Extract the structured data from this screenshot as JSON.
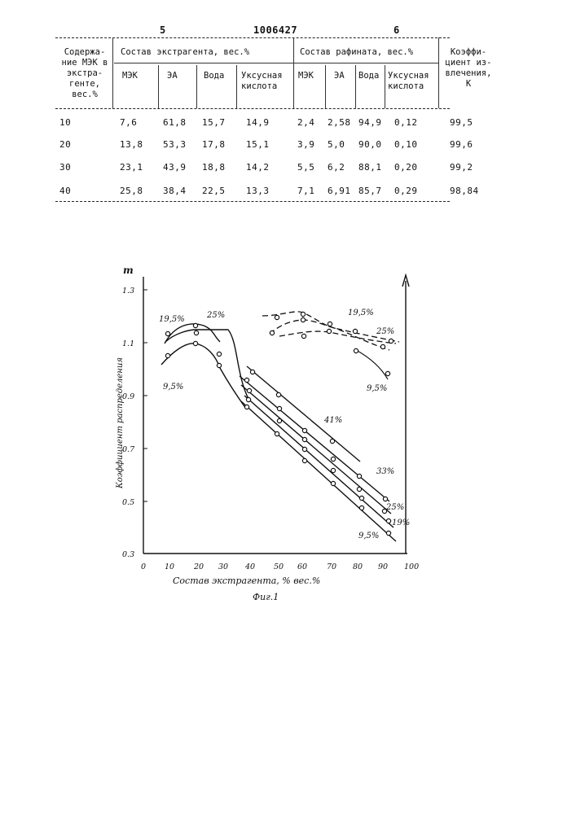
{
  "header": {
    "left_col": "5",
    "patent_number": "1006427",
    "right_col": "6"
  },
  "table": {
    "col1_header": "Содержа-\nние МЭК в\nэкстра-\nгенте,\nвес.%",
    "group_extract": "Состав экстрагента, вес.%",
    "group_raffinate": "Состав рафината, вес.%",
    "coef_header": "Коэффи-\nциент из-\nвлечения,\nК",
    "sub_extract": [
      "МЭК",
      "ЭА",
      "Вода",
      "Уксусная\nкислота"
    ],
    "sub_raffinate": [
      "МЭК",
      "ЭА",
      "Вода",
      "Уксусная\nкислота"
    ],
    "rows": [
      [
        "10",
        "7,6",
        "61,8",
        "15,7",
        "14,9",
        "2,4",
        "2,58",
        "94,9",
        "0,12",
        "99,5"
      ],
      [
        "20",
        "13,8",
        "53,3",
        "17,8",
        "15,1",
        "3,9",
        "5,0",
        "90,0",
        "0,10",
        "99,6"
      ],
      [
        "30",
        "23,1",
        "43,9",
        "18,8",
        "14,2",
        "5,5",
        "6,2",
        "88,1",
        "0,20",
        "99,2"
      ],
      [
        "40",
        "25,8",
        "38,4",
        "22,5",
        "13,3",
        "7,1",
        "6,91",
        "85,7",
        "0,29",
        "98,84"
      ]
    ]
  },
  "figure": {
    "y_axis_symbol": "m",
    "y_label": "Коэффициент распределения",
    "x_label": "Состав экстрагента, % вес.%",
    "caption": "Фиг.1",
    "y_ticks": [
      "1.3",
      "1.1",
      "0.9",
      "0.7",
      "0.5",
      "0.3"
    ],
    "x_ticks": [
      "0",
      "10",
      "20",
      "30",
      "40",
      "50",
      "60",
      "70",
      "80",
      "90",
      "100"
    ],
    "curve_labels": [
      "19,5%",
      "25%",
      "9,5%",
      "19,5%",
      "25%",
      "9,5%",
      "41%",
      "33%",
      "25%",
      "19%",
      "9,5%"
    ]
  }
}
